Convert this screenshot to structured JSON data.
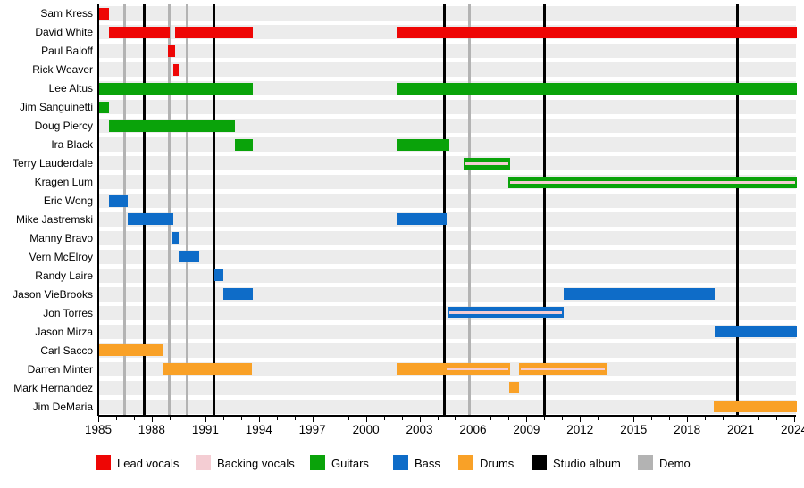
{
  "chart_data": {
    "type": "timeline",
    "x_axis": {
      "start_year": 1985,
      "end_year": 2024.15,
      "minor_tick_step_years": 1,
      "labeled_tick_step_years": 3,
      "tick_labels": [
        "1985",
        "1988",
        "1991",
        "1994",
        "1997",
        "2000",
        "2003",
        "2006",
        "2009",
        "2012",
        "2015",
        "2018",
        "2021",
        "2024"
      ]
    },
    "colors": {
      "lead_vocals": "#ee0605",
      "backing_vocals": "#f4cdd3",
      "guitars": "#0aa30a",
      "bass": "#0e6cc8",
      "drums": "#f9a127",
      "studio_album": "#000000",
      "demo": "#b3b3b3",
      "row_band": "#ececec",
      "background": "#ffffff"
    },
    "legend": [
      {
        "label": "Lead vocals",
        "color_key": "lead_vocals"
      },
      {
        "label": "Backing vocals",
        "color_key": "backing_vocals"
      },
      {
        "label": "Guitars",
        "color_key": "guitars"
      },
      {
        "label": "Bass",
        "color_key": "bass"
      },
      {
        "label": "Drums",
        "color_key": "drums"
      },
      {
        "label": "Studio album",
        "color_key": "studio_album"
      },
      {
        "label": "Demo",
        "color_key": "demo"
      }
    ],
    "events": {
      "studio_album_years": [
        1987.6,
        1991.5,
        2004.4,
        2010.0,
        2020.8
      ],
      "demo_years": [
        1986.5,
        1989.0,
        1990.0,
        2005.8
      ]
    },
    "members": [
      {
        "name": "Sam Kress",
        "color_key": "lead_vocals",
        "segments": [
          {
            "from": 1985.0,
            "to": 1985.6
          }
        ]
      },
      {
        "name": "David White",
        "color_key": "lead_vocals",
        "segments": [
          {
            "from": 1985.6,
            "to": 1989.0
          },
          {
            "from": 1989.3,
            "to": 1993.65
          },
          {
            "from": 2001.7,
            "to": 2024.15
          }
        ]
      },
      {
        "name": "Paul Baloff",
        "color_key": "lead_vocals",
        "segments": [
          {
            "from": 1988.9,
            "to": 1989.3
          }
        ]
      },
      {
        "name": "Rick Weaver",
        "color_key": "lead_vocals",
        "segments": [
          {
            "from": 1989.2,
            "to": 1989.5
          }
        ]
      },
      {
        "name": "Lee Altus",
        "color_key": "guitars",
        "segments": [
          {
            "from": 1985.0,
            "to": 1993.65
          },
          {
            "from": 2001.7,
            "to": 2024.15
          }
        ]
      },
      {
        "name": "Jim Sanguinetti",
        "color_key": "guitars",
        "segments": [
          {
            "from": 1985.0,
            "to": 1985.6
          }
        ]
      },
      {
        "name": "Doug Piercy",
        "color_key": "guitars",
        "segments": [
          {
            "from": 1985.6,
            "to": 1992.65
          }
        ]
      },
      {
        "name": "Ira Black",
        "color_key": "guitars",
        "segments": [
          {
            "from": 1992.65,
            "to": 1993.65
          },
          {
            "from": 2001.7,
            "to": 2004.7
          }
        ]
      },
      {
        "name": "Terry Lauderdale",
        "color_key": "guitars",
        "segments": [
          {
            "from": 2005.5,
            "to": 2008.1,
            "backing_vocals_stripe": true
          }
        ]
      },
      {
        "name": "Kragen Lum",
        "color_key": "guitars",
        "segments": [
          {
            "from": 2008.0,
            "to": 2024.15,
            "backing_vocals_stripe": true
          }
        ]
      },
      {
        "name": "Eric Wong",
        "color_key": "bass",
        "segments": [
          {
            "from": 1985.6,
            "to": 1986.65
          }
        ]
      },
      {
        "name": "Mike Jastremski",
        "color_key": "bass",
        "segments": [
          {
            "from": 1986.65,
            "to": 1989.2
          },
          {
            "from": 2001.7,
            "to": 2004.55
          }
        ]
      },
      {
        "name": "Manny Bravo",
        "color_key": "bass",
        "segments": [
          {
            "from": 1989.15,
            "to": 1989.5
          }
        ]
      },
      {
        "name": "Vern McElroy",
        "color_key": "bass",
        "segments": [
          {
            "from": 1989.5,
            "to": 1990.65
          }
        ]
      },
      {
        "name": "Randy Laire",
        "color_key": "bass",
        "segments": [
          {
            "from": 1991.45,
            "to": 1992.0
          }
        ]
      },
      {
        "name": "Jason VieBrooks",
        "color_key": "bass",
        "segments": [
          {
            "from": 1992.0,
            "to": 1993.65
          },
          {
            "from": 2011.1,
            "to": 2019.55
          }
        ]
      },
      {
        "name": "Jon Torres",
        "color_key": "bass",
        "segments": [
          {
            "from": 2004.6,
            "to": 2011.1,
            "backing_vocals_stripe": true
          }
        ]
      },
      {
        "name": "Jason Mirza",
        "color_key": "bass",
        "segments": [
          {
            "from": 2019.55,
            "to": 2024.15
          }
        ]
      },
      {
        "name": "Carl Sacco",
        "color_key": "drums",
        "segments": [
          {
            "from": 1985.0,
            "to": 1988.65
          }
        ]
      },
      {
        "name": "Darren Minter",
        "color_key": "drums",
        "segments": [
          {
            "from": 1988.65,
            "to": 1993.6
          },
          {
            "from": 2001.7,
            "to": 2008.1,
            "backing_vocals_stripe": true,
            "stripe_from": 2004.55
          },
          {
            "from": 2008.6,
            "to": 2013.5,
            "backing_vocals_stripe": true
          }
        ]
      },
      {
        "name": "Mark Hernandez",
        "color_key": "drums",
        "segments": [
          {
            "from": 2008.05,
            "to": 2008.6
          }
        ]
      },
      {
        "name": "Jim DeMaria",
        "color_key": "drums",
        "segments": [
          {
            "from": 2019.5,
            "to": 2024.15
          }
        ]
      }
    ]
  }
}
